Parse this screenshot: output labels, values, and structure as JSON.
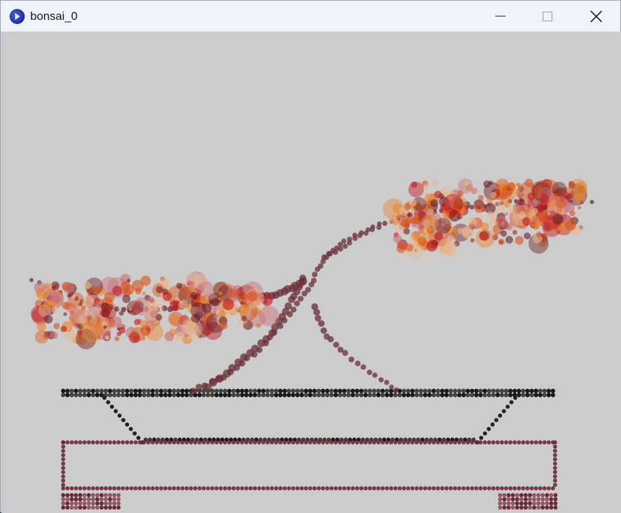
{
  "window": {
    "title": "bonsai_0",
    "icon": "processing-app-icon",
    "controls": [
      "minimize-icon",
      "maximize-icon",
      "close-icon"
    ]
  },
  "colors": {
    "canvas_bg": "#cccccc",
    "titlebar_bg": "#eef4f9",
    "trunk": "#6b2f3a",
    "pot_top": "#111111",
    "pot_base": "#6a2a36",
    "blossom_orange": "#e8862a",
    "blossom_peach": "#e8b890",
    "blossom_red": "#c0181a",
    "blossom_dark": "#6b1f28"
  }
}
